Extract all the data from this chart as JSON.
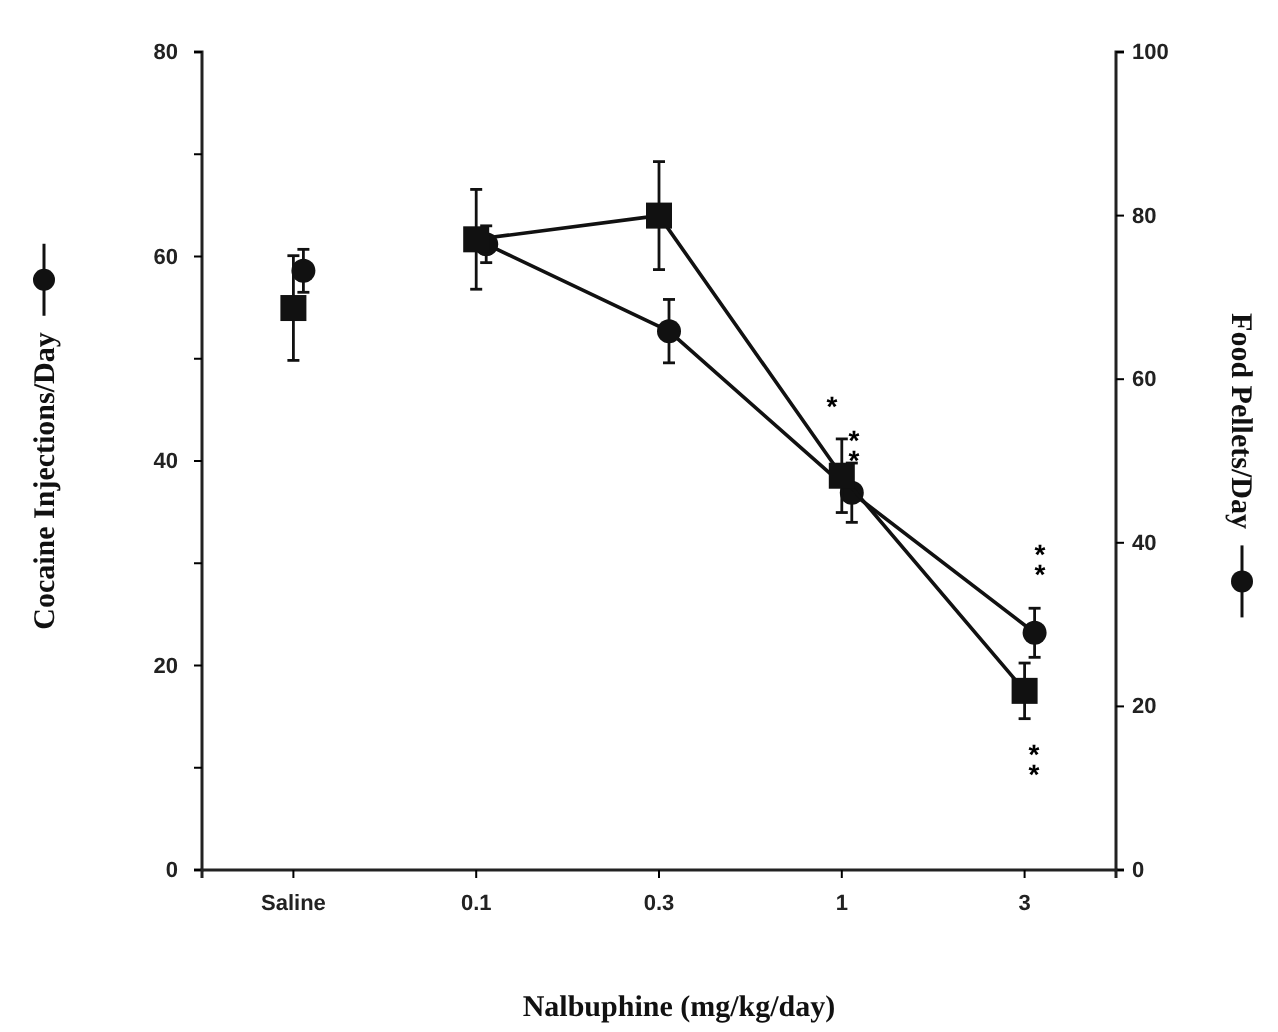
{
  "chart_data": {
    "type": "line",
    "xlabel": "Nalbuphine (mg/kg/day)",
    "ylabel": "Cocaine Injections/Day",
    "y2label": "Food Pellets/Day",
    "categories": [
      "Saline",
      "0.1",
      "0.3",
      "1",
      "3"
    ],
    "series": [
      {
        "color": "#111111",
        "marker": "circle",
        "values": [
          58.6,
          null,
          null,
          null,
          null
        ],
        "errors": [
          2.1,
          null,
          null,
          null,
          null
        ]
      },
      {
        "color": "#111111",
        "marker": "square",
        "axis": "y2",
        "values": [
          68.7,
          null,
          null,
          null,
          null
        ],
        "errors": [
          6.4,
          null,
          null,
          null,
          null
        ]
      },
      {
        "color": "#111111",
        "marker": "circle",
        "values": [
          null,
          61.2,
          52.7,
          36.9,
          23.2
        ],
        "errors": [
          null,
          1.8,
          3.1,
          2.9,
          2.4
        ]
      },
      {
        "color": "#111111",
        "marker": "square",
        "axis": "y2",
        "values": [
          null,
          77.1,
          80.0,
          48.2,
          21.9
        ],
        "errors": [
          null,
          6.1,
          6.6,
          4.5,
          3.4
        ]
      }
    ],
    "ylim": [
      0,
      80
    ],
    "yticks": [
      0,
      {
        "value": 10,
        "label": null
      },
      20,
      {
        "value": 30,
        "label": null
      },
      40,
      {
        "value": 50,
        "label": null
      },
      60,
      {
        "value": 70,
        "label": null
      },
      80
    ],
    "y2lim": [
      0,
      100
    ],
    "y2ticks": [
      0,
      20,
      40,
      60,
      80,
      100
    ],
    "annotations": [
      "*",
      "**",
      "**",
      "**"
    ],
    "line_style": "solid",
    "grid": false
  }
}
